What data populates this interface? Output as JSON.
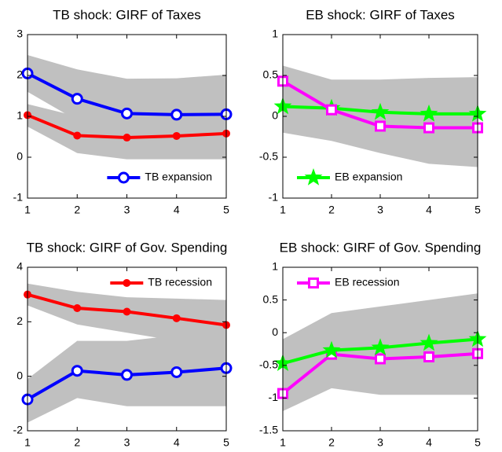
{
  "chart_data": [
    {
      "type": "line",
      "title": "TB shock: GIRF of Taxes",
      "x": [
        1,
        2,
        3,
        4,
        5
      ],
      "xlim": [
        1,
        5
      ],
      "xticks": [
        1,
        2,
        3,
        4,
        5
      ],
      "ylim": [
        -1,
        3
      ],
      "yticks": [
        -1,
        0,
        1,
        2,
        3
      ],
      "legend": "lower right",
      "bands": [
        {
          "color": "#c0c0c0",
          "upper": [
            2.5,
            2.15,
            1.92,
            1.93,
            2.02
          ],
          "lower": [
            1.6,
            0.9,
            0.3,
            0.2,
            0.1
          ]
        },
        {
          "color": "#c0c0c0",
          "upper": [
            1.3,
            1.0,
            1.0,
            1.1,
            1.1
          ],
          "lower": [
            0.75,
            0.1,
            -0.05,
            -0.05,
            -0.05
          ]
        }
      ],
      "series": [
        {
          "name": "TB expansion",
          "color": "#0000ff",
          "marker": "circle",
          "values": [
            2.05,
            1.43,
            1.07,
            1.04,
            1.05
          ]
        },
        {
          "color": "#ff0000",
          "marker": "dot",
          "values": [
            1.03,
            0.53,
            0.48,
            0.52,
            0.58
          ]
        }
      ]
    },
    {
      "type": "line",
      "title": "EB shock: GIRF of Taxes",
      "x": [
        1,
        2,
        3,
        4,
        5
      ],
      "xlim": [
        1,
        5
      ],
      "xticks": [
        1,
        2,
        3,
        4,
        5
      ],
      "ylim": [
        -1,
        1
      ],
      "yticks": [
        -1,
        -0.5,
        0,
        0.5,
        1
      ],
      "legend": "lower left",
      "bands": [
        {
          "color": "#c0c0c0",
          "upper": [
            0.62,
            0.45,
            0.45,
            0.47,
            0.48
          ],
          "lower": [
            -0.2,
            -0.3,
            -0.45,
            -0.58,
            -0.62
          ]
        }
      ],
      "series": [
        {
          "name": "EB expansion",
          "color": "#00ff00",
          "marker": "star",
          "values": [
            0.12,
            0.1,
            0.05,
            0.03,
            0.03
          ]
        },
        {
          "color": "#ff00ff",
          "marker": "square",
          "values": [
            0.43,
            0.08,
            -0.12,
            -0.14,
            -0.14
          ]
        }
      ]
    },
    {
      "type": "line",
      "title": "TB shock: GIRF of Gov. Spending",
      "x": [
        1,
        2,
        3,
        4,
        5
      ],
      "xlim": [
        1,
        5
      ],
      "xticks": [
        1,
        2,
        3,
        4,
        5
      ],
      "ylim": [
        -2,
        4
      ],
      "yticks": [
        -2,
        0,
        2,
        4
      ],
      "legend": "upper right",
      "bands": [
        {
          "color": "#c0c0c0",
          "upper": [
            3.4,
            3.1,
            2.9,
            2.85,
            2.8
          ],
          "lower": [
            2.6,
            1.9,
            1.6,
            1.3,
            1.2
          ]
        },
        {
          "color": "#c0c0c0",
          "upper": [
            -0.1,
            1.3,
            1.3,
            1.5,
            1.7
          ],
          "lower": [
            -1.7,
            -0.8,
            -1.1,
            -1.1,
            -1.1
          ]
        }
      ],
      "series": [
        {
          "name": "TB recession",
          "color": "#ff0000",
          "marker": "dot",
          "values": [
            3.0,
            2.5,
            2.37,
            2.13,
            1.88
          ]
        },
        {
          "color": "#0000ff",
          "marker": "circle",
          "values": [
            -0.85,
            0.2,
            0.05,
            0.15,
            0.3
          ]
        }
      ]
    },
    {
      "type": "line",
      "title": "EB shock: GIRF of Gov. Spending",
      "x": [
        1,
        2,
        3,
        4,
        5
      ],
      "xlim": [
        1,
        5
      ],
      "xticks": [
        1,
        2,
        3,
        4,
        5
      ],
      "ylim": [
        -1.5,
        1
      ],
      "yticks": [
        -1.5,
        -1,
        -0.5,
        0,
        0.5,
        1
      ],
      "legend": "upper left",
      "bands": [
        {
          "color": "#c0c0c0",
          "upper": [
            -0.1,
            0.3,
            0.4,
            0.5,
            0.6
          ],
          "lower": [
            -1.2,
            -0.85,
            -0.95,
            -0.95,
            -0.95
          ]
        }
      ],
      "series": [
        {
          "name": "EB recession",
          "color": "#ff00ff",
          "marker": "square",
          "values": [
            -0.93,
            -0.33,
            -0.4,
            -0.37,
            -0.32
          ]
        },
        {
          "color": "#00ff00",
          "marker": "star",
          "values": [
            -0.47,
            -0.27,
            -0.23,
            -0.16,
            -0.1
          ]
        }
      ]
    }
  ]
}
